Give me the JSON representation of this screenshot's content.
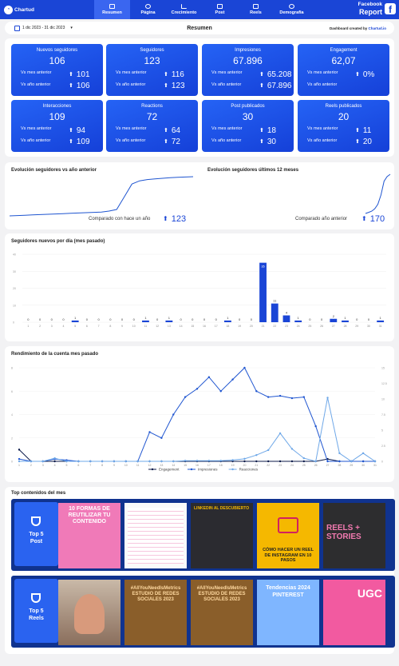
{
  "nav": {
    "logo": "Chartud",
    "logo_icon": "chartud-logo",
    "tabs": [
      "Resumen",
      "Página",
      "Crecimiento",
      "Post",
      "Reels",
      "Demografia"
    ],
    "report_line1": "Facebook",
    "report_line2": "Report",
    "fb_icon": "facebook-icon"
  },
  "toolbar": {
    "date_range": "1 dic 2023 - 31 dic 2023",
    "title": "Resumen",
    "credit_prefix": "Dashboard created by",
    "credit_brand": "Chartud.io"
  },
  "kpis": [
    {
      "title": "Nuevos seguidores",
      "value": "106",
      "mes_label": "Vs mes anterior",
      "mes": "101",
      "ano_label": "Vs año anterior",
      "ano": "106"
    },
    {
      "title": "Seguidores",
      "value": "123",
      "mes_label": "Vs mes anterior",
      "mes": "116",
      "ano_label": "Vs año anterior",
      "ano": "123"
    },
    {
      "title": "Impresiones",
      "value": "67.896",
      "mes_label": "Vs mes anterior",
      "mes": "65.208",
      "ano_label": "Vs año anterior",
      "ano": "67.896"
    },
    {
      "title": "Engagement",
      "value": "62,07",
      "mes_label": "Vs mes anterior",
      "mes": "0%",
      "ano_label": "Vs año anterior",
      "ano": ""
    },
    {
      "title": "Interacciones",
      "value": "109",
      "mes_label": "Vs mes anterior",
      "mes": "94",
      "ano_label": "Vs año anterior",
      "ano": "109"
    },
    {
      "title": "Reactions",
      "value": "72",
      "mes_label": "Vs mes anterior",
      "mes": "64",
      "ano_label": "Vs año anterior",
      "ano": "72"
    },
    {
      "title": "Post publicados",
      "value": "30",
      "mes_label": "Vs mes anterior",
      "mes": "18",
      "ano_label": "Vs año anterior",
      "ano": "30"
    },
    {
      "title": "Reels publicados",
      "value": "20",
      "mes_label": "Vs mes anterior",
      "mes": "11",
      "ano_label": "Vs año anterior",
      "ano": "20"
    }
  ],
  "evolution": {
    "left_title": "Evolución seguidores vs año anterior",
    "left_cmp_label": "Comparado con hace un año",
    "left_cmp_value": "123",
    "right_title": "Evolución seguidores últimos 12 meses",
    "right_cmp_label": "Comparado año anterior",
    "right_cmp_value": "170"
  },
  "daily": {
    "title": "Seguidores nuevos por día (mes pasado)"
  },
  "perf": {
    "title": "Rendimiento de la cuenta mes pasado"
  },
  "content": {
    "title": "Top contenidos del mes",
    "post_label_1": "Top 5",
    "post_label_2": "Post",
    "reels_label_1": "Top 5",
    "reels_label_2": "Reels",
    "post_thumbs": [
      {
        "text": "10 FORMAS DE REUTILIZAR TU CONTENIDO"
      },
      {
        "text": ""
      },
      {
        "text": "LINKEDIN AL DESCUBIERTO"
      },
      {
        "text": "CÓMO HACER UN REEL DE INSTAGRAM EN 10 PASOS"
      },
      {
        "text": "REELS + STORIES"
      }
    ],
    "reel_thumbs": [
      {
        "text": ""
      },
      {
        "text": "#AllYouNeedIsMetrics ESTUDIO DE REDES SOCIALES 2023"
      },
      {
        "text": "#AllYouNeedIsMetrics ESTUDIO DE REDES SOCIALES 2023"
      },
      {
        "text": "Tendencias 2024 PINTEREST"
      },
      {
        "text": "UGC"
      }
    ]
  },
  "chart_data": [
    {
      "type": "line",
      "title": "Evolución seguidores vs año anterior",
      "series": [
        {
          "values": [
            0,
            1,
            2,
            3,
            4,
            5,
            6,
            7,
            8,
            9,
            10,
            11,
            12,
            15,
            20,
            60,
            100,
            110,
            114,
            116,
            118,
            120,
            121,
            122,
            123
          ]
        }
      ]
    },
    {
      "type": "line",
      "title": "Evolución seguidores últimos 12 meses",
      "series": [
        {
          "values": [
            0,
            5,
            10,
            20,
            40,
            80,
            140,
            160,
            170
          ]
        }
      ]
    },
    {
      "type": "bar",
      "title": "Seguidores nuevos por día (mes pasado)",
      "categories": [
        "1",
        "2",
        "3",
        "4",
        "5",
        "6",
        "7",
        "8",
        "9",
        "10",
        "11",
        "12",
        "13",
        "14",
        "15",
        "16",
        "17",
        "18",
        "19",
        "20",
        "21",
        "22",
        "23",
        "24",
        "25",
        "26",
        "27",
        "28",
        "29",
        "30",
        "31"
      ],
      "values": [
        0,
        0,
        0,
        0,
        1,
        0,
        0,
        0,
        0,
        0,
        1,
        0,
        1,
        0,
        0,
        0,
        0,
        1,
        0,
        0,
        35,
        11,
        4,
        1,
        0,
        0,
        2,
        1,
        0,
        0,
        1
      ],
      "ylim": [
        0,
        40
      ],
      "yticks": [
        0,
        10,
        20,
        30,
        40
      ]
    },
    {
      "type": "line",
      "title": "Rendimiento de la cuenta mes pasado",
      "categories": [
        "1",
        "2",
        "3",
        "4",
        "5",
        "6",
        "7",
        "8",
        "9",
        "10",
        "11",
        "12",
        "13",
        "14",
        "15",
        "16",
        "17",
        "18",
        "19",
        "20",
        "21",
        "22",
        "23",
        "24",
        "25",
        "26",
        "27",
        "28",
        "29",
        "30",
        "31"
      ],
      "series": [
        {
          "name": "Engagement",
          "color": "#0b1a4a",
          "values": [
            1,
            0,
            0,
            0,
            0,
            0,
            0,
            0,
            0,
            0,
            0,
            0,
            0,
            0,
            0,
            0,
            0,
            0,
            0,
            0,
            0,
            0,
            0,
            0,
            0,
            0,
            0.2,
            0,
            0,
            0,
            0
          ]
        },
        {
          "name": "Impresiones",
          "color": "#1f55d0",
          "values": [
            0.2,
            0,
            0,
            0.2,
            0.1,
            0,
            0,
            0,
            0,
            0,
            0,
            2.5,
            2,
            4,
            5.5,
            6.2,
            7.2,
            6,
            7,
            8,
            6,
            5.5,
            5.6,
            5.4,
            5.5,
            3,
            0,
            0,
            0,
            0,
            0
          ]
        },
        {
          "name": "Reacciones",
          "color": "#6fa8e8",
          "values": [
            0,
            0,
            0,
            0.5,
            0,
            0,
            0,
            0,
            0,
            0,
            0,
            0,
            0,
            0,
            0.1,
            0.1,
            0.1,
            0.1,
            0.2,
            0.4,
            1,
            1.8,
            4.5,
            2,
            0.5,
            0,
            10.2,
            1.3,
            0,
            1.3,
            0
          ]
        }
      ],
      "yticks_left": [
        0,
        2,
        4,
        6,
        8
      ],
      "yticks_right": [
        0,
        2.5,
        5,
        7.5,
        10,
        12.5,
        15
      ]
    }
  ]
}
